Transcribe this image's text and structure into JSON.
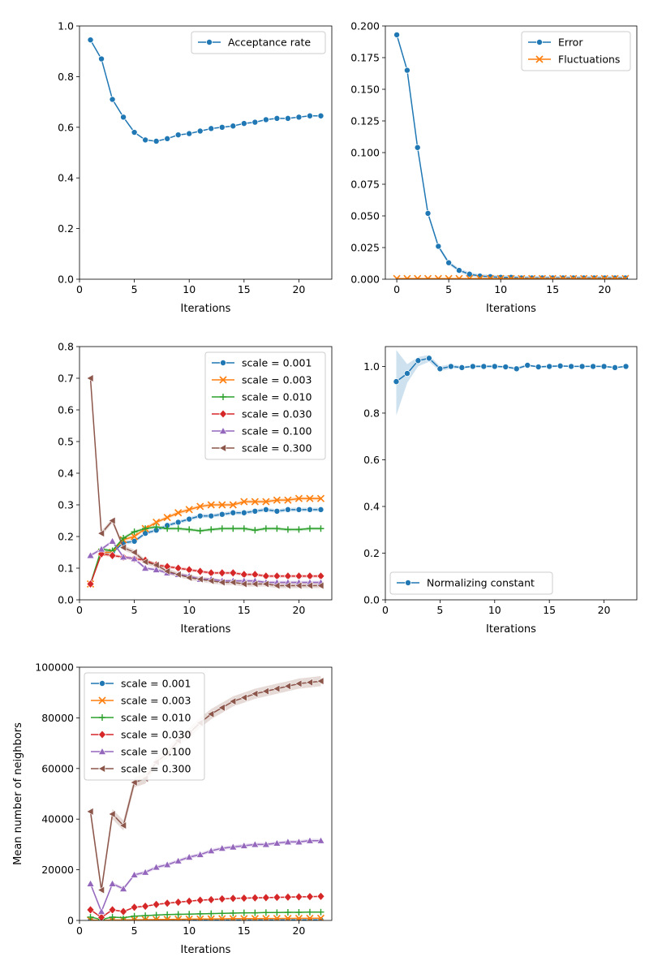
{
  "chart_data": [
    {
      "id": "acceptance",
      "type": "line",
      "xlabel": "Iterations",
      "ylabel": "",
      "xlim": [
        0,
        23
      ],
      "ylim": [
        0,
        1.0
      ],
      "xticks": [
        0,
        5,
        10,
        15,
        20
      ],
      "xtick_labels": [
        "0",
        "5",
        "10",
        "15",
        "20"
      ],
      "yticks": [
        0,
        0.2,
        0.4,
        0.6,
        0.8,
        1.0
      ],
      "ytick_labels": [
        "0.0",
        "0.2",
        "0.4",
        "0.6",
        "0.8",
        "1.0"
      ],
      "legend_position": "top-right",
      "series": [
        {
          "name": "Acceptance rate",
          "color": "#1f77b4",
          "marker": "circle",
          "x": [
            1,
            2,
            3,
            4,
            5,
            6,
            7,
            8,
            9,
            10,
            11,
            12,
            13,
            14,
            15,
            16,
            17,
            18,
            19,
            20,
            21,
            22
          ],
          "y": [
            0.945,
            0.87,
            0.71,
            0.64,
            0.58,
            0.55,
            0.545,
            0.555,
            0.57,
            0.575,
            0.585,
            0.595,
            0.6,
            0.605,
            0.615,
            0.62,
            0.63,
            0.635,
            0.635,
            0.64,
            0.645,
            0.645
          ]
        }
      ]
    },
    {
      "id": "error",
      "type": "line",
      "xlabel": "Iterations",
      "ylabel": "",
      "xlim": [
        -1.1,
        23.1
      ],
      "ylim": [
        0,
        0.2
      ],
      "xticks": [
        0,
        5,
        10,
        15,
        20
      ],
      "xtick_labels": [
        "0",
        "5",
        "10",
        "15",
        "20"
      ],
      "yticks": [
        0,
        0.025,
        0.05,
        0.075,
        0.1,
        0.125,
        0.15,
        0.175,
        0.2
      ],
      "ytick_labels": [
        "0.000",
        "0.025",
        "0.050",
        "0.075",
        "0.100",
        "0.125",
        "0.150",
        "0.175",
        "0.200"
      ],
      "legend_position": "top-right",
      "series": [
        {
          "name": "Error",
          "color": "#1f77b4",
          "marker": "circle",
          "x": [
            0,
            1,
            2,
            3,
            4,
            5,
            6,
            7,
            8,
            9,
            10,
            11,
            12,
            13,
            14,
            15,
            16,
            17,
            18,
            19,
            20,
            21,
            22
          ],
          "y": [
            0.193,
            0.165,
            0.104,
            0.052,
            0.026,
            0.013,
            0.007,
            0.004,
            0.0025,
            0.002,
            0.0015,
            0.0015,
            0.001,
            0.001,
            0.001,
            0.001,
            0.001,
            0.001,
            0.001,
            0.001,
            0.001,
            0.001,
            0.001
          ],
          "band": 0.0015
        },
        {
          "name": "Fluctuations",
          "color": "#ff7f0e",
          "marker": "x",
          "x": [
            0,
            1,
            2,
            3,
            4,
            5,
            6,
            7,
            8,
            9,
            10,
            11,
            12,
            13,
            14,
            15,
            16,
            17,
            18,
            19,
            20,
            21,
            22
          ],
          "y": [
            0.0005,
            0.0005,
            0.0005,
            0.0005,
            0.0005,
            0.0005,
            0.0005,
            0.0005,
            0.0005,
            0.0005,
            0.0005,
            0.0005,
            0.0005,
            0.0005,
            0.0005,
            0.0005,
            0.0005,
            0.0005,
            0.0005,
            0.0005,
            0.0005,
            0.0005,
            0.0005
          ]
        }
      ]
    },
    {
      "id": "scale-metric",
      "type": "line",
      "xlabel": "Iterations",
      "ylabel": "",
      "xlim": [
        0,
        23
      ],
      "ylim": [
        0,
        0.8
      ],
      "xticks": [
        0,
        5,
        10,
        15,
        20
      ],
      "xtick_labels": [
        "0",
        "5",
        "10",
        "15",
        "20"
      ],
      "yticks": [
        0,
        0.1,
        0.2,
        0.3,
        0.4,
        0.5,
        0.6,
        0.7,
        0.8
      ],
      "ytick_labels": [
        "0.0",
        "0.1",
        "0.2",
        "0.3",
        "0.4",
        "0.5",
        "0.6",
        "0.7",
        "0.8"
      ],
      "legend_position": "top-right",
      "series": [
        {
          "name": "scale = 0.001",
          "color": "#1f77b4",
          "marker": "circle",
          "x": [
            1,
            2,
            3,
            4,
            5,
            6,
            7,
            8,
            9,
            10,
            11,
            12,
            13,
            14,
            15,
            16,
            17,
            18,
            19,
            20,
            21,
            22
          ],
          "y": [
            0.05,
            0.15,
            0.15,
            0.18,
            0.185,
            0.21,
            0.22,
            0.235,
            0.245,
            0.255,
            0.265,
            0.265,
            0.27,
            0.275,
            0.275,
            0.28,
            0.285,
            0.28,
            0.285,
            0.285,
            0.285,
            0.285
          ],
          "band": 0.006
        },
        {
          "name": "scale = 0.003",
          "color": "#ff7f0e",
          "marker": "x",
          "x": [
            1,
            2,
            3,
            4,
            5,
            6,
            7,
            8,
            9,
            10,
            11,
            12,
            13,
            14,
            15,
            16,
            17,
            18,
            19,
            20,
            21,
            22
          ],
          "y": [
            0.05,
            0.15,
            0.15,
            0.19,
            0.2,
            0.225,
            0.245,
            0.26,
            0.275,
            0.285,
            0.295,
            0.3,
            0.3,
            0.3,
            0.31,
            0.31,
            0.31,
            0.315,
            0.315,
            0.32,
            0.32,
            0.32
          ],
          "band": 0.006
        },
        {
          "name": "scale = 0.010",
          "color": "#2ca02c",
          "marker": "plus",
          "x": [
            1,
            2,
            3,
            4,
            5,
            6,
            7,
            8,
            9,
            10,
            11,
            12,
            13,
            14,
            15,
            16,
            17,
            18,
            19,
            20,
            21,
            22
          ],
          "y": [
            0.05,
            0.16,
            0.155,
            0.195,
            0.215,
            0.225,
            0.23,
            0.225,
            0.225,
            0.222,
            0.218,
            0.222,
            0.225,
            0.225,
            0.225,
            0.22,
            0.225,
            0.225,
            0.222,
            0.222,
            0.225,
            0.225
          ],
          "band": 0.005
        },
        {
          "name": "scale = 0.030",
          "color": "#d62728",
          "marker": "diamond",
          "x": [
            1,
            2,
            3,
            4,
            5,
            6,
            7,
            8,
            9,
            10,
            11,
            12,
            13,
            14,
            15,
            16,
            17,
            18,
            19,
            20,
            21,
            22
          ],
          "y": [
            0.05,
            0.145,
            0.14,
            0.135,
            0.13,
            0.125,
            0.11,
            0.105,
            0.1,
            0.095,
            0.09,
            0.085,
            0.085,
            0.085,
            0.08,
            0.08,
            0.075,
            0.075,
            0.075,
            0.075,
            0.075,
            0.075
          ],
          "band": 0.005
        },
        {
          "name": "scale = 0.100",
          "color": "#9467bd",
          "marker": "triangle-up",
          "x": [
            1,
            2,
            3,
            4,
            5,
            6,
            7,
            8,
            9,
            10,
            11,
            12,
            13,
            14,
            15,
            16,
            17,
            18,
            19,
            20,
            21,
            22
          ],
          "y": [
            0.14,
            0.16,
            0.185,
            0.135,
            0.13,
            0.1,
            0.095,
            0.085,
            0.08,
            0.075,
            0.065,
            0.065,
            0.06,
            0.06,
            0.06,
            0.06,
            0.055,
            0.055,
            0.055,
            0.055,
            0.055,
            0.055
          ],
          "band": 0.005
        },
        {
          "name": "scale = 0.300",
          "color": "#8c564b",
          "marker": "triangle-left",
          "x": [
            1,
            2,
            3,
            4,
            5,
            6,
            7,
            8,
            9,
            10,
            11,
            12,
            13,
            14,
            15,
            16,
            17,
            18,
            19,
            20,
            21,
            22
          ],
          "y": [
            0.7,
            0.21,
            0.25,
            0.165,
            0.15,
            0.12,
            0.11,
            0.09,
            0.08,
            0.07,
            0.065,
            0.06,
            0.055,
            0.055,
            0.05,
            0.05,
            0.05,
            0.045,
            0.045,
            0.045,
            0.045,
            0.045
          ],
          "band": 0.008
        }
      ]
    },
    {
      "id": "normalizing",
      "type": "line",
      "xlabel": "Iterations",
      "ylabel": "",
      "xlim": [
        0,
        23
      ],
      "ylim": [
        0,
        1.085
      ],
      "xticks": [
        0,
        5,
        10,
        15,
        20
      ],
      "xtick_labels": [
        "0",
        "5",
        "10",
        "15",
        "20"
      ],
      "yticks": [
        0,
        0.2,
        0.4,
        0.6,
        0.8,
        1.0
      ],
      "ytick_labels": [
        "0.0",
        "0.2",
        "0.4",
        "0.6",
        "0.8",
        "1.0"
      ],
      "legend_position": "bottom-left",
      "series": [
        {
          "name": "Normalizing constant",
          "color": "#1f77b4",
          "marker": "circle",
          "x": [
            1,
            2,
            3,
            4,
            5,
            6,
            7,
            8,
            9,
            10,
            11,
            12,
            13,
            14,
            15,
            16,
            17,
            18,
            19,
            20,
            21,
            22
          ],
          "y": [
            0.935,
            0.97,
            1.025,
            1.035,
            0.99,
            1.0,
            0.995,
            1.0,
            1.0,
            1.0,
            0.998,
            0.99,
            1.005,
            0.998,
            1.0,
            1.002,
            1.0,
            1.0,
            1.0,
            1.0,
            0.995,
            1.0
          ],
          "band_lo": [
            0.79,
            0.93,
            1.0,
            1.02,
            0.98,
            0.99,
            0.99,
            0.995,
            0.995,
            0.995,
            0.995,
            0.985,
            1.0,
            0.995,
            0.995,
            0.998,
            0.997,
            0.997,
            0.997,
            0.997,
            0.992,
            0.997
          ],
          "band_hi": [
            1.07,
            1.01,
            1.04,
            1.05,
            1.0,
            1.01,
            1.0,
            1.005,
            1.005,
            1.005,
            1.002,
            0.997,
            1.01,
            1.002,
            1.005,
            1.006,
            1.003,
            1.003,
            1.003,
            1.003,
            0.998,
            1.003
          ]
        }
      ]
    },
    {
      "id": "neighbors",
      "type": "line",
      "xlabel": "Iterations",
      "ylabel": "Mean number of neighbors",
      "xlim": [
        0,
        23
      ],
      "ylim": [
        0,
        100000
      ],
      "xticks": [
        0,
        5,
        10,
        15,
        20
      ],
      "xtick_labels": [
        "0",
        "5",
        "10",
        "15",
        "20"
      ],
      "yticks": [
        0,
        20000,
        40000,
        60000,
        80000,
        100000
      ],
      "ytick_labels": [
        "0",
        "20000",
        "40000",
        "60000",
        "80000",
        "100000"
      ],
      "legend_position": "top-left",
      "series": [
        {
          "name": "scale = 0.001",
          "color": "#1f77b4",
          "marker": "circle",
          "x": [
            1,
            2,
            3,
            4,
            5,
            6,
            7,
            8,
            9,
            10,
            11,
            12,
            13,
            14,
            15,
            16,
            17,
            18,
            19,
            20,
            21,
            22
          ],
          "y": [
            50,
            20,
            50,
            60,
            70,
            80,
            90,
            100,
            110,
            120,
            130,
            140,
            150,
            160,
            170,
            180,
            190,
            200,
            210,
            220,
            230,
            240
          ],
          "band": 0
        },
        {
          "name": "scale = 0.003",
          "color": "#ff7f0e",
          "marker": "x",
          "x": [
            1,
            2,
            3,
            4,
            5,
            6,
            7,
            8,
            9,
            10,
            11,
            12,
            13,
            14,
            15,
            16,
            17,
            18,
            19,
            20,
            21,
            22
          ],
          "y": [
            150,
            50,
            150,
            200,
            250,
            300,
            350,
            400,
            450,
            500,
            550,
            600,
            650,
            700,
            720,
            740,
            760,
            780,
            800,
            820,
            840,
            860
          ],
          "band": 0
        },
        {
          "name": "scale = 0.010",
          "color": "#2ca02c",
          "marker": "plus",
          "x": [
            1,
            2,
            3,
            4,
            5,
            6,
            7,
            8,
            9,
            10,
            11,
            12,
            13,
            14,
            15,
            16,
            17,
            18,
            19,
            20,
            21,
            22
          ],
          "y": [
            1300,
            400,
            1300,
            1100,
            1700,
            1900,
            2100,
            2300,
            2400,
            2500,
            2600,
            2700,
            2800,
            2900,
            3000,
            3000,
            3100,
            3100,
            3200,
            3200,
            3300,
            3300
          ],
          "band": 150
        },
        {
          "name": "scale = 0.030",
          "color": "#d62728",
          "marker": "diamond",
          "x": [
            1,
            2,
            3,
            4,
            5,
            6,
            7,
            8,
            9,
            10,
            11,
            12,
            13,
            14,
            15,
            16,
            17,
            18,
            19,
            20,
            21,
            22
          ],
          "y": [
            4200,
            1200,
            4200,
            3500,
            5200,
            5600,
            6300,
            6800,
            7200,
            7600,
            8000,
            8200,
            8500,
            8700,
            8800,
            8900,
            9000,
            9100,
            9200,
            9300,
            9400,
            9500
          ],
          "band": 300
        },
        {
          "name": "scale = 0.100",
          "color": "#9467bd",
          "marker": "triangle-up",
          "x": [
            1,
            2,
            3,
            4,
            5,
            6,
            7,
            8,
            9,
            10,
            11,
            12,
            13,
            14,
            15,
            16,
            17,
            18,
            19,
            20,
            21,
            22
          ],
          "y": [
            14500,
            3500,
            14500,
            12500,
            18000,
            19000,
            21000,
            22000,
            23500,
            25000,
            26000,
            27500,
            28500,
            29000,
            29500,
            30000,
            30000,
            30500,
            31000,
            31000,
            31500,
            31500
          ],
          "band": 700
        },
        {
          "name": "scale = 0.300",
          "color": "#8c564b",
          "marker": "triangle-left",
          "x": [
            1,
            2,
            3,
            4,
            5,
            6,
            7,
            8,
            9,
            10,
            11,
            12,
            13,
            14,
            15,
            16,
            17,
            18,
            19,
            20,
            21,
            22
          ],
          "y": [
            43000,
            12000,
            42000,
            37500,
            54500,
            56000,
            62500,
            66000,
            71000,
            74000,
            78000,
            81500,
            84000,
            86500,
            88000,
            89500,
            90500,
            91500,
            92500,
            93500,
            94000,
            94500
          ],
          "band": 2000
        }
      ]
    }
  ]
}
